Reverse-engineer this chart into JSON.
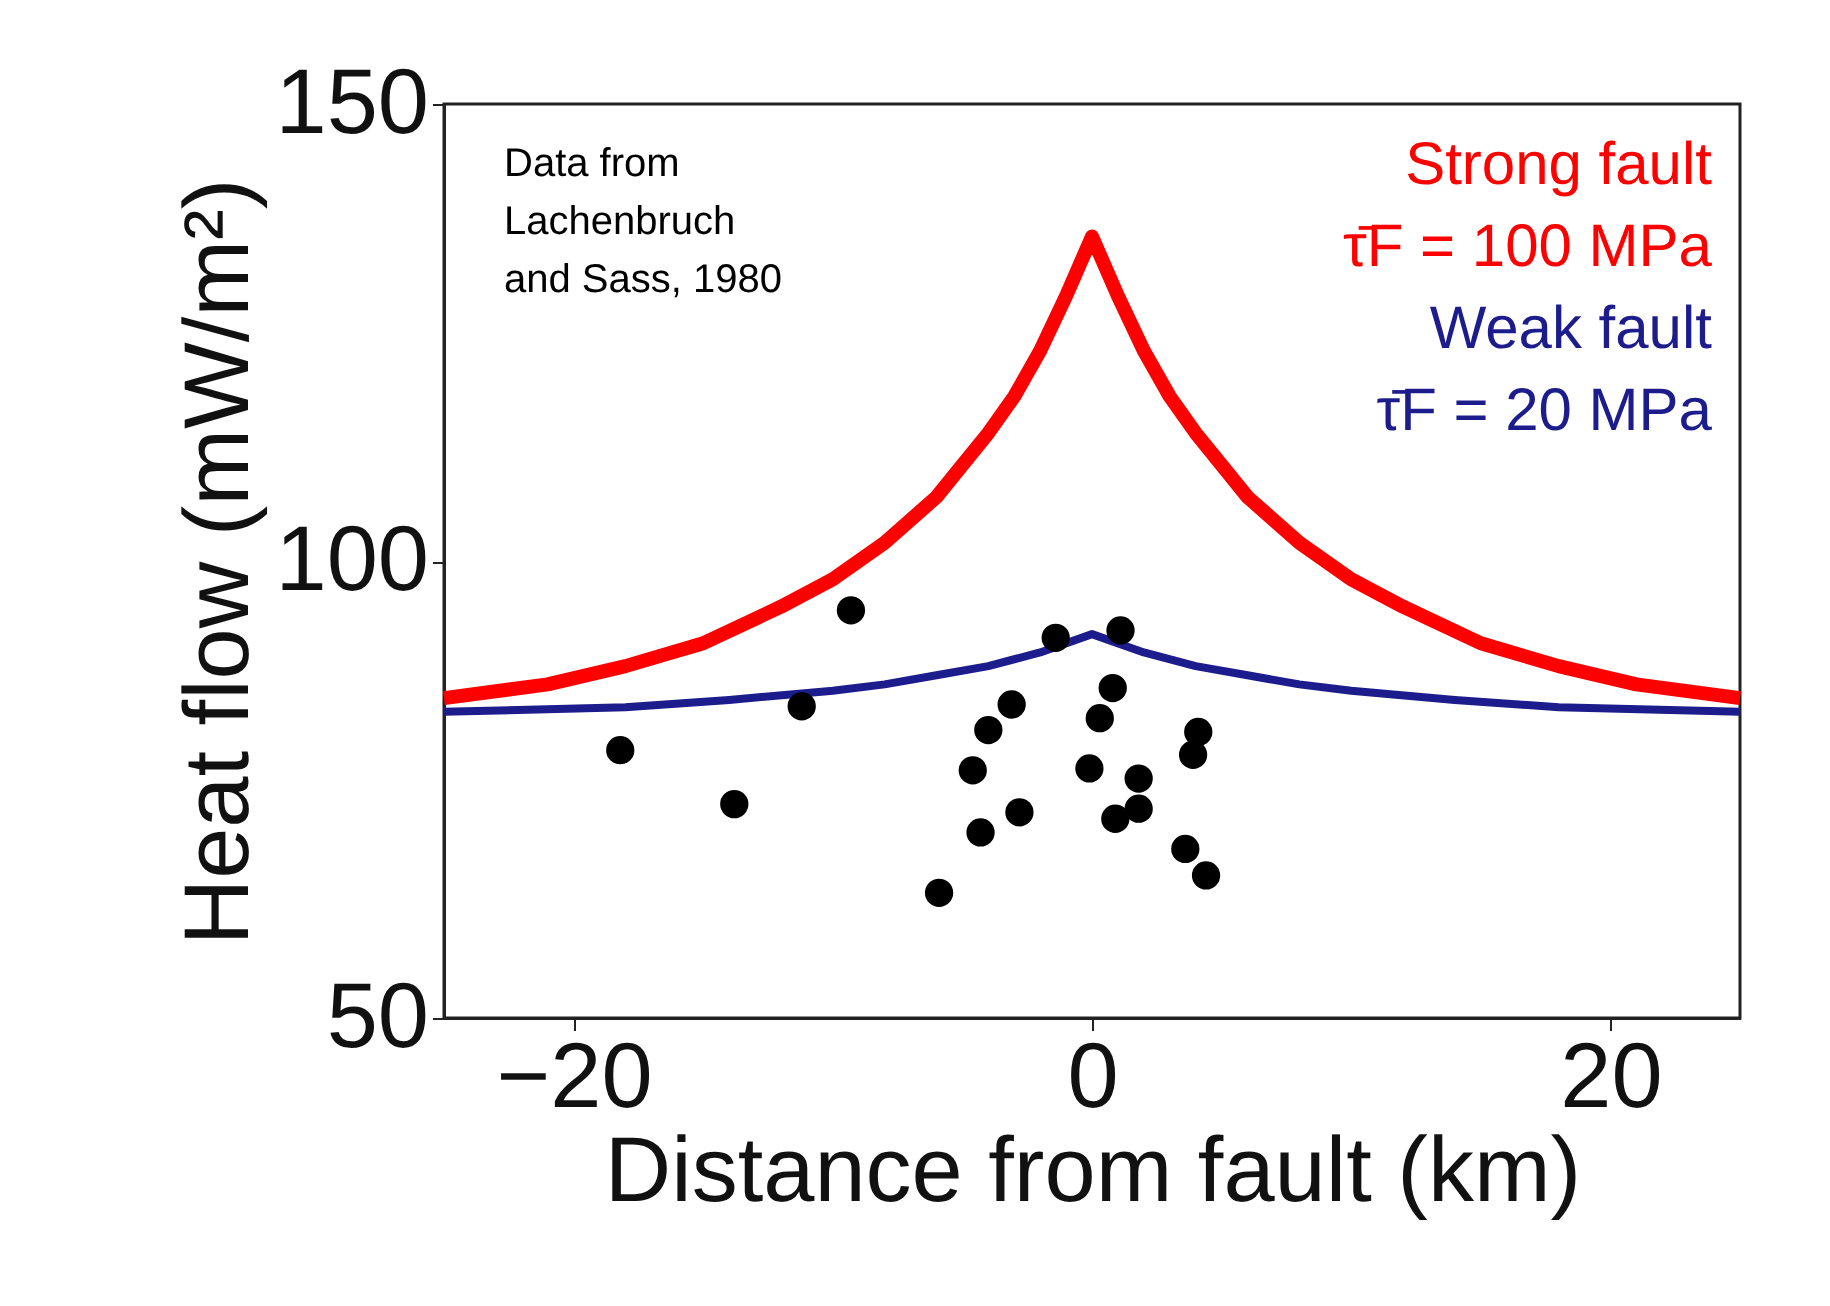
{
  "chart_data": {
    "type": "line",
    "xlabel": "Distance from fault (km)",
    "ylabel": "Heat flow (mW/m²)",
    "xlim": [
      -25,
      25
    ],
    "ylim": [
      50,
      150
    ],
    "xticks": [
      -20,
      0,
      20
    ],
    "yticks": [
      50,
      100,
      150
    ],
    "grid": false,
    "annotations": [
      "Data from\nLachenbruch\nand Sass, 1980",
      "τ̄F = 100 MPa",
      "τ̄F = 20 MPa"
    ],
    "series": [
      {
        "name": "Strong fault",
        "type": "line",
        "color": "#ff0000",
        "x": [
          -25,
          -21,
          -18,
          -15,
          -12,
          -10,
          -8,
          -6,
          -5,
          -4,
          -3,
          -2,
          -1,
          0,
          1,
          2,
          3,
          4,
          5,
          6,
          8,
          10,
          12,
          15,
          18,
          21,
          25
        ],
        "values": [
          85,
          86.5,
          88.5,
          91,
          95,
          98,
          102,
          107,
          110.5,
          114,
          118,
          123,
          129,
          135.5,
          129,
          123,
          118,
          114,
          110.5,
          107,
          102,
          98,
          95,
          91,
          88.5,
          86.5,
          85
        ]
      },
      {
        "name": "Weak fault",
        "type": "line",
        "color": "#1c1c8c",
        "x": [
          -25,
          -18,
          -14,
          -10,
          -8,
          -6,
          -4,
          -2,
          0,
          2,
          4,
          6,
          8,
          10,
          14,
          18,
          25
        ],
        "values": [
          83.5,
          84,
          84.8,
          85.8,
          86.5,
          87.5,
          88.5,
          90,
          92,
          90,
          88.5,
          87.5,
          86.5,
          85.8,
          84.8,
          84,
          83.5
        ]
      },
      {
        "type": "scatter",
        "color": "#000000",
        "marker": "circle",
        "x": [
          -18.2,
          -13.8,
          -11.2,
          -9.3,
          -5.9,
          -4.3,
          -4.6,
          -4.0,
          -3.1,
          -2.8,
          -1.4,
          1.1,
          -0.1,
          0.3,
          0.8,
          0.9,
          1.8,
          1.8,
          4.1,
          3.9,
          3.6,
          4.4
        ],
        "values": [
          79.3,
          73.4,
          84.1,
          94.6,
          63.7,
          70.3,
          77.1,
          81.5,
          84.3,
          72.5,
          91.6,
          92.4,
          77.3,
          82.8,
          86.1,
          71.8,
          76.2,
          72.9,
          81.3,
          78.8,
          68.5,
          65.6
        ]
      }
    ]
  }
}
